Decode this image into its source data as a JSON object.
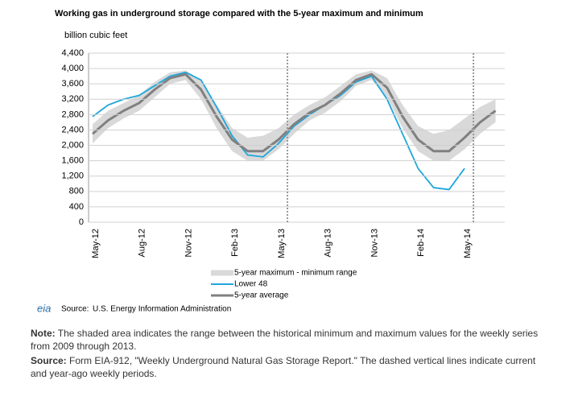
{
  "chart_data": {
    "type": "line",
    "title": "Working gas in underground storage compared with the 5-year maximum and minimum",
    "y_label": "billion cubic feet",
    "categories": [
      "May-12",
      null,
      null,
      "Aug-12",
      null,
      null,
      "Nov-12",
      null,
      null,
      "Feb-13",
      null,
      null,
      "May-13",
      null,
      null,
      "Aug-13",
      null,
      null,
      "Nov-13",
      null,
      null,
      "Feb-14",
      null,
      null,
      "May-14",
      null,
      null
    ],
    "series": [
      {
        "name": "5-year maximum - minimum range",
        "color": "#d9d9d9",
        "upper": [
          2550,
          2900,
          3100,
          3300,
          3650,
          3900,
          3950,
          3700,
          3050,
          2450,
          2200,
          2250,
          2450,
          2800,
          3050,
          3250,
          3550,
          3850,
          3950,
          3750,
          3050,
          2500,
          2300,
          2400,
          2700,
          3000,
          3200
        ],
        "lower": [
          2050,
          2450,
          2700,
          2900,
          3250,
          3600,
          3700,
          3200,
          2450,
          1850,
          1600,
          1600,
          1900,
          2300,
          2650,
          2850,
          3150,
          3550,
          3700,
          3250,
          2450,
          1850,
          1600,
          1600,
          1900,
          2300,
          2600
        ]
      },
      {
        "name": "Lower 48",
        "color": "#1ea6dc",
        "values": [
          2750,
          3050,
          3200,
          3300,
          3550,
          3800,
          3900,
          3700,
          3000,
          2250,
          1750,
          1700,
          2050,
          2500,
          2800,
          3050,
          3300,
          3650,
          3800,
          3200,
          2300,
          1400,
          900,
          850,
          1400,
          null,
          null
        ]
      },
      {
        "name": "5-year average",
        "color": "#808080",
        "values": [
          2300,
          2650,
          2900,
          3100,
          3450,
          3750,
          3850,
          3450,
          2750,
          2150,
          1850,
          1850,
          2150,
          2550,
          2850,
          3050,
          3350,
          3700,
          3850,
          3500,
          2750,
          2150,
          1850,
          1850,
          2200,
          2600,
          2900
        ]
      }
    ],
    "ylim": [
      0,
      4400
    ],
    "yticks": [
      0,
      400,
      800,
      {
        "value": 1200,
        "label": "1,200"
      },
      {
        "value": 1600,
        "label": "1,600"
      },
      {
        "value": 2000,
        "label": "2,000"
      },
      {
        "value": 2400,
        "label": "2,400"
      },
      {
        "value": 2800,
        "label": "2,800"
      },
      {
        "value": 3200,
        "label": "3,200"
      },
      {
        "value": 3600,
        "label": "3,600"
      },
      {
        "value": 4000,
        "label": "4,000"
      },
      {
        "value": 4400,
        "label": "4,400"
      }
    ],
    "grid": true,
    "logo": "eia",
    "source_label": "Source:",
    "source": "U.S. Energy Information Administration"
  },
  "notes": [
    {
      "label": "Note:",
      "text": "The shaded area indicates the range between the historical minimum and maximum values for the weekly series from 2009 through 2013."
    },
    {
      "label": "Source:",
      "text": "Form EIA-912, \"Weekly Underground Natural Gas Storage Report.\" The dashed vertical lines indicate current and year-ago weekly periods."
    }
  ]
}
